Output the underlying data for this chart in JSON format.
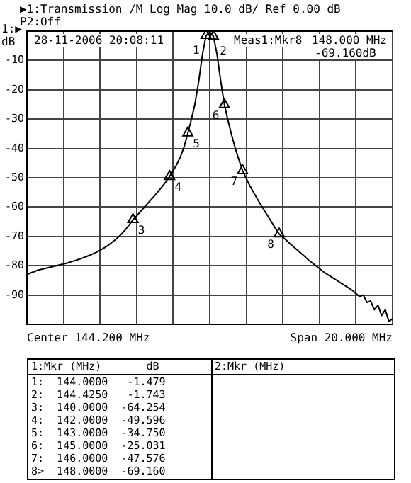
{
  "chart_data": {
    "type": "line",
    "title": "▶1:Transmission /M Log Mag 10.0 dB/ Ref 0.00 dB",
    "subtitle": "P2:Off",
    "ylabel": "dB",
    "categories": [
      null,
      null,
      null,
      null,
      null,
      null,
      null,
      null,
      null,
      null,
      null,
      null,
      null,
      null,
      null,
      null,
      null,
      null,
      null,
      null,
      null,
      null,
      null,
      null,
      null,
      null,
      null,
      null,
      null,
      null,
      null,
      null,
      null,
      null,
      null,
      null,
      null,
      null,
      null,
      null,
      null,
      null,
      null,
      null,
      null,
      null,
      null,
      null,
      null,
      null,
      null,
      null,
      null,
      null,
      null,
      null,
      null,
      null,
      null,
      null,
      null,
      null,
      null,
      null,
      null,
      null,
      null,
      null,
      null,
      null,
      null,
      null,
      null,
      null,
      null,
      null,
      null,
      null,
      null,
      null,
      null,
      null,
      null,
      null,
      null,
      null,
      null,
      null,
      null,
      null,
      null,
      null,
      null,
      null,
      null,
      null,
      null,
      null,
      null,
      null,
      null
    ],
    "ylim": [
      -100,
      0
    ],
    "ref_lines": [
      {
        "axis": "y",
        "value": 0,
        "label": "1:▶",
        "color": "#000000"
      }
    ],
    "yticks": [
      {
        "value": 0,
        "label": null
      },
      -10,
      -20,
      -30,
      -40,
      -50,
      -60,
      -70,
      -80,
      -90,
      {
        "value": -100,
        "label": null
      }
    ],
    "tick_labels": "y",
    "grid": true,
    "legend": false,
    "line_style": "solid",
    "series": [
      {
        "color": "#000000",
        "marker": "none",
        "values": [
          -83,
          -82.5,
          -82,
          -81.5,
          -81.2,
          -80.9,
          -80.6,
          -80.3,
          -80,
          -79.7,
          -79.4,
          -79.1,
          -78.7,
          -78.3,
          -77.9,
          -77.5,
          -77,
          -76.5,
          -76,
          -75.4,
          -74.7,
          -74,
          -73.2,
          -72.3,
          -71.3,
          -70.2,
          -69,
          -67.6,
          -66,
          -64.3,
          -63,
          -61.6,
          -60.2,
          -58.8,
          -57.4,
          -56,
          -54.5,
          -53,
          -51.4,
          -49.6,
          -47.6,
          -45.4,
          -42.8,
          -39.4,
          -34.8,
          -30,
          -24.5,
          -17,
          -8,
          -1.5,
          -0.3,
          -1.7,
          -8,
          -17,
          -25,
          -30.5,
          -35.5,
          -40,
          -44,
          -47.6,
          -50.3,
          -52.8,
          -55,
          -57.2,
          -59.3,
          -61.3,
          -63.3,
          -65.3,
          -67.3,
          -69.2,
          -70.3,
          -71.4,
          -72.5,
          -73.6,
          -74.7,
          -75.8,
          -76.9,
          -78,
          -79,
          -80,
          -81,
          -82,
          -82.8,
          -83.6,
          -84.4,
          -85.2,
          -86,
          -86.8,
          -87.6,
          -88.4,
          -89.5,
          -90.5,
          -90,
          -92.5,
          -92,
          -95,
          -93.5,
          -97,
          -95,
          -99,
          -98
        ]
      },
      {
        "type": "scatter",
        "color": "#000000",
        "marker": "triangle",
        "values": [
          null,
          null,
          null,
          null,
          null,
          null,
          null,
          null,
          null,
          null,
          null,
          null,
          null,
          null,
          null,
          null,
          null,
          null,
          null,
          null,
          null,
          null,
          null,
          null,
          null,
          null,
          null,
          null,
          null,
          -64.254,
          null,
          null,
          null,
          null,
          null,
          null,
          null,
          null,
          null,
          -49.596,
          null,
          null,
          null,
          null,
          -34.75,
          null,
          null,
          null,
          null,
          -1.479,
          null,
          -1.743,
          null,
          null,
          -25.031,
          null,
          null,
          null,
          null,
          -47.576,
          null,
          null,
          null,
          null,
          null,
          null,
          null,
          null,
          null,
          -69.16,
          null,
          null,
          null,
          null,
          null,
          null,
          null,
          null,
          null,
          null,
          null,
          null,
          null,
          null,
          null,
          null,
          null,
          null,
          null,
          null,
          null,
          null,
          null,
          null,
          null,
          null,
          null,
          null,
          null,
          null,
          null
        ]
      }
    ],
    "annotations": [
      "28-11-2006 20:08:11",
      "Meas1:Mkr8",
      "148.000 MHz",
      "-69.160dB",
      "Center 144.200 MHz",
      "Span 20.000 MHz",
      "1:Mkr (MHz)",
      "dB",
      "2:Mkr (MHz)",
      "1:  144.0000   -1.479",
      "2:  144.4250   -1.743",
      "3:  140.0000  -64.254",
      "4:  142.0000  -49.596",
      "5:  143.0000  -34.750",
      "6:  145.0000  -25.031",
      "7:  146.0000  -47.576",
      "8>  148.0000  -69.160",
      "3",
      "4",
      "5",
      "1",
      "2",
      "6",
      "7",
      "8"
    ]
  }
}
